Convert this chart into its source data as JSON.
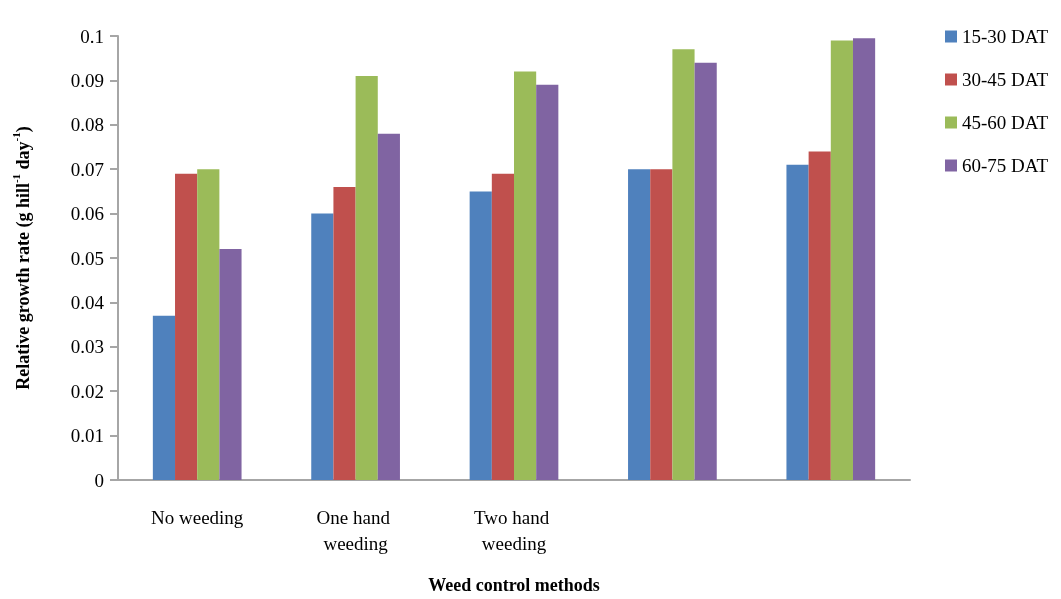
{
  "chart_data": {
    "type": "bar",
    "xlabel": "Weed control methods",
    "ylabel": "Relative growth rate (g hill$^{-1}$ day$^{-1}$)",
    "categories": [
      "No weeding",
      "One hand weeding",
      "Two hand weeding",
      null,
      null
    ],
    "series": [
      {
        "name": "15-30 DAT",
        "color": "#4f81bd",
        "values": [
          0.037,
          0.06,
          0.065,
          0.07,
          0.071
        ]
      },
      {
        "name": "30-45 DAT",
        "color": "#c0504d",
        "values": [
          0.069,
          0.066,
          0.069,
          0.07,
          0.074
        ]
      },
      {
        "name": "45-60 DAT",
        "color": "#9bbb59",
        "values": [
          0.07,
          0.091,
          0.092,
          0.097,
          0.099
        ]
      },
      {
        "name": "60-75 DAT",
        "color": "#8064a2",
        "values": [
          0.052,
          0.078,
          0.089,
          0.094,
          0.0995
        ]
      }
    ],
    "ylim": [
      0,
      0.1
    ],
    "yticks": [
      0,
      0.01,
      0.02,
      0.03,
      0.04,
      0.05,
      0.06,
      0.07,
      0.08,
      0.09,
      0.1
    ],
    "legend": "top right"
  }
}
